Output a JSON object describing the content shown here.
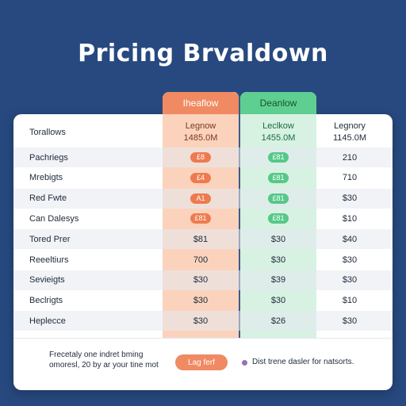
{
  "title": "Pricing Brvaldown",
  "columns": {
    "col1_header": "Iheaflow",
    "col2_header": "Deanlow"
  },
  "subheader": {
    "label": "Torallows",
    "col1": {
      "name": "Legnow",
      "price": "1485.0M"
    },
    "col2": {
      "name": "Leclkow",
      "price": "1455.0M"
    },
    "col3": {
      "name": "Legnory",
      "price": "1145.0M"
    }
  },
  "rows": [
    {
      "label": "Pachriegs",
      "col1": "£8",
      "col2": "£81",
      "col3": "210"
    },
    {
      "label": "Mrebigts",
      "col1": "£4",
      "col2": "£81",
      "col3": "710"
    },
    {
      "label": "Red Fwte",
      "col1": "A1",
      "col2": "£81",
      "col3": "$30"
    },
    {
      "label": "Can Dalesys",
      "col1": "£81",
      "col2": "£81",
      "col3": "$10"
    },
    {
      "label": "Tored Prer",
      "col1": "$81",
      "col2": "$30",
      "col3": "$40"
    },
    {
      "label": "Reeeltiurs",
      "col1": "700",
      "col2": "$30",
      "col3": "$30"
    },
    {
      "label": "Sevieigts",
      "col1": "$30",
      "col2": "$39",
      "col3": "$30"
    },
    {
      "label": "Beclrigts",
      "col1": "$30",
      "col2": "$30",
      "col3": "$10"
    },
    {
      "label": "Heplecce",
      "col1": "$30",
      "col2": "$26",
      "col3": "$30"
    }
  ],
  "footer": {
    "text_line1": "Frecetaly one indret bming",
    "text_line2": "omoresl, 20 by ar your tine mot",
    "button_label": "Lag ferf",
    "note": "Dist trene dasler for natsorts."
  },
  "colors": {
    "background": "#27497f",
    "orange_accent": "#f08a62",
    "green_accent": "#5fcf91"
  }
}
